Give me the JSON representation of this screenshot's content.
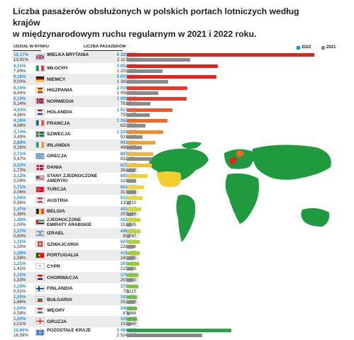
{
  "title_line1": "Liczba pasażerów obsłużonych w polskich portach lotniczych według krajów",
  "title_line2": "w międzynarodowym ruchu regularnym w 2021 i 2022 roku.",
  "legend": {
    "y2022": "2022",
    "y2021": "2021"
  },
  "col_share": "UDZIAŁ W RYNKU",
  "col_pax": "LICZBA PASAŻERÓW",
  "colors": {
    "year2021": "#8a8a8a",
    "share2022": "#1f8ee0",
    "legend2022": "#1f8ee0",
    "other_bar": "#2e9e4a",
    "map_land": "#1f9a3e"
  },
  "chart_data": {
    "type": "bar",
    "orientation": "horizontal",
    "title": "Liczba pasażerów obsłużonych w polskich portach lotniczych według krajów w międzynarodowym ruchu regularnym w 2021 i 2022 roku.",
    "series_names": [
      "2022",
      "2021"
    ],
    "rows": [
      {
        "country": "WIELKA BRYTANIA",
        "flag": "gb-flag-icon",
        "share2022": "19,17%",
        "share2021": "13,91%",
        "pax2022": "6 283 079",
        "pax2021": "2 117 634",
        "v2022": 6283079,
        "v2021": 2117634,
        "color": "#e1251b"
      },
      {
        "country": "WŁOCHY",
        "flag": "it-flag-icon",
        "share2022": "9,31%",
        "share2021": "7,89%",
        "pax2022": "3 052 573",
        "pax2021": "1 200 889",
        "v2022": 3052573,
        "v2021": 1200889,
        "color": "#e1251b"
      },
      {
        "country": "NIEMCY",
        "flag": "de-flag-icon",
        "share2022": "9,18%",
        "share2021": "9,00%",
        "pax2022": "3 007 280",
        "pax2021": "1 369 234",
        "v2022": 3007280,
        "v2021": 1369234,
        "color": "#e1251b"
      },
      {
        "country": "HISZPANIA",
        "flag": "es-flag-icon",
        "share2022": "6,15%",
        "share2021": "6,94%",
        "pax2022": "2 016 221",
        "pax2021": "1 056 269",
        "v2022": 2016221,
        "v2021": 1056269,
        "color": "#e8392a"
      },
      {
        "country": "NORWEGIA",
        "flag": "no-flag-icon",
        "share2022": "6,10%",
        "share2021": "5,14%",
        "pax2022": "1 999 291",
        "pax2021": "781 718",
        "v2022": 1999291,
        "v2021": 781718,
        "color": "#e8392a"
      },
      {
        "country": "HOLANDIA",
        "flag": "nl-flag-icon",
        "share2022": "4,63%",
        "share2021": "4,96%",
        "pax2022": "1 517 093",
        "pax2021": "755 277",
        "v2022": 1517093,
        "v2021": 755277,
        "color": "#ec5a2a"
      },
      {
        "country": "FRANCJA",
        "flag": "fr-flag-icon",
        "share2022": "4,16%",
        "share2021": "4,08%",
        "pax2022": "1 362 909",
        "pax2021": "620 523",
        "v2022": 1362909,
        "v2021": 620523,
        "color": "#ec6a2c"
      },
      {
        "country": "SZWECJA",
        "flag": "se-flag-icon",
        "share2022": "3,74%",
        "share2021": "3,49%",
        "pax2022": "1 224 457",
        "pax2021": "531 366",
        "v2022": 1224457,
        "v2021": 531366,
        "color": "#ef8a2e"
      },
      {
        "country": "IRLANDIA",
        "flag": "ie-flag-icon",
        "share2022": "2,88%",
        "share2021": "3,26%",
        "pax2022": "943 698",
        "pax2021": "496 255",
        "v2022": 943698,
        "v2021": 496255,
        "color": "#f3a02f"
      },
      {
        "country": "GRECJA",
        "flag": "gr-flag-icon",
        "share2022": "2,71%",
        "share2021": "5,47%",
        "pax2022": "887 741",
        "pax2021": "832 274",
        "v2022": 887741,
        "v2021": 832274,
        "color": "#f5b331"
      },
      {
        "country": "DANIA",
        "flag": "dk-flag-icon",
        "share2022": "2,52%",
        "share2021": "1,73%",
        "pax2022": "825 255",
        "pax2021": "262 628",
        "v2022": 825255,
        "v2021": 262628,
        "color": "#f5c030"
      },
      {
        "country": "STANY ZJEDNOCZONE AMERYKI",
        "flag": "us-flag-icon",
        "share2022": "2,12%",
        "share2021": "2,08%",
        "pax2022": "693 657",
        "pax2021": "316 681",
        "v2022": 693657,
        "v2021": 316681,
        "color": "#f2cf2e"
      },
      {
        "country": "TURCJA",
        "flag": "tr-flag-icon",
        "share2022": "1,71%",
        "share2021": "2,06%",
        "pax2022": "561 070",
        "pax2021": "313 232",
        "v2022": 561070,
        "v2021": 313232,
        "color": "#eed82c"
      },
      {
        "country": "AUSTRIA",
        "flag": "at-flag-icon",
        "share2022": "1,56%",
        "share2021": "0,86%",
        "pax2022": "512 657",
        "pax2021": "130 210",
        "v2022": 512657,
        "v2021": 130210,
        "color": "#e8dc2b"
      },
      {
        "country": "BELGIA",
        "flag": "be-flag-icon",
        "share2022": "1,47%",
        "share2021": "1,36%",
        "pax2022": "481 745",
        "pax2021": "207 428",
        "v2022": 481745,
        "v2021": 207428,
        "color": "#d6db2b"
      },
      {
        "country": "ZJEDNOCZONE EMIRATY ARABSKIE",
        "flag": "ae-flag-icon",
        "share2022": "1,38%",
        "share2021": "1,00%",
        "pax2022": "452 795",
        "pax2021": "151 785",
        "v2022": 452795,
        "v2021": 151785,
        "color": "#c9d82d"
      },
      {
        "country": "IZRAEL",
        "flag": "il-flag-icon",
        "share2022": "1,37%",
        "share2021": "0,60%",
        "pax2022": "448 531",
        "pax2021": "90 747",
        "v2022": 448531,
        "v2021": 90747,
        "color": "#bcd52f"
      },
      {
        "country": "SZWAJCARIA",
        "flag": "ch-flag-icon",
        "share2022": "1,31%",
        "share2021": "1,50%",
        "pax2022": "427 882",
        "pax2021": "228 606",
        "v2022": 427882,
        "v2021": 228606,
        "color": "#b0d130"
      },
      {
        "country": "PORTUGALIA",
        "flag": "pt-flag-icon",
        "share2022": "1,28%",
        "share2021": "1,58%",
        "pax2022": "419 675",
        "pax2021": "240 875",
        "v2022": 419675,
        "v2021": 240875,
        "color": "#a4cd32"
      },
      {
        "country": "CYPR",
        "flag": "cy-flag-icon",
        "share2022": "1,21%",
        "share2021": "1,41%",
        "pax2022": "397 456",
        "pax2021": "215 126",
        "v2022": 397456,
        "v2021": 215126,
        "color": "#98c934"
      },
      {
        "country": "CHORWACJA",
        "flag": "hr-flag-icon",
        "share2022": "1,15%",
        "share2021": "1,33%",
        "pax2022": "376 701",
        "pax2021": "203 060",
        "v2022": 376701,
        "v2021": 203060,
        "color": "#8cc535"
      },
      {
        "country": "FINLANDIA",
        "flag": "fi-flag-icon",
        "share2022": "1,15%",
        "share2021": "0,51%",
        "pax2022": "375 921",
        "pax2021": "78 115",
        "v2022": 375921,
        "v2021": 78115,
        "color": "#80c136"
      },
      {
        "country": "BUŁGARIA",
        "flag": "bg-flag-icon",
        "share2022": "1,05%",
        "share2021": "1,66%",
        "pax2022": "343 354",
        "pax2021": "252 283",
        "v2022": 343354,
        "v2021": 252283,
        "color": "#74bd38"
      },
      {
        "country": "WĘGRY",
        "flag": "hu-flag-icon",
        "share2022": "1,04%",
        "share2021": "0,58%",
        "pax2022": "340 506",
        "pax2021": "87 964",
        "v2022": 340506,
        "v2021": 87964,
        "color": "#68b939"
      },
      {
        "country": "GRUZJA",
        "flag": "ge-flag-icon",
        "share2022": "1,00%",
        "share2021": "1,01%",
        "pax2022": "326 507",
        "pax2021": "153 940",
        "v2022": 326507,
        "v2021": 153940,
        "color": "#5cb53b"
      },
      {
        "country": "POZOSTAŁE KRAJE",
        "flag": "world-icon",
        "share2022": "10,66%",
        "share2021": "16,59%",
        "pax2022": "3 494 323",
        "pax2021": "2 524 662",
        "v2022": 3494323,
        "v2021": 2524662,
        "color": "#2e9e4a"
      }
    ]
  }
}
